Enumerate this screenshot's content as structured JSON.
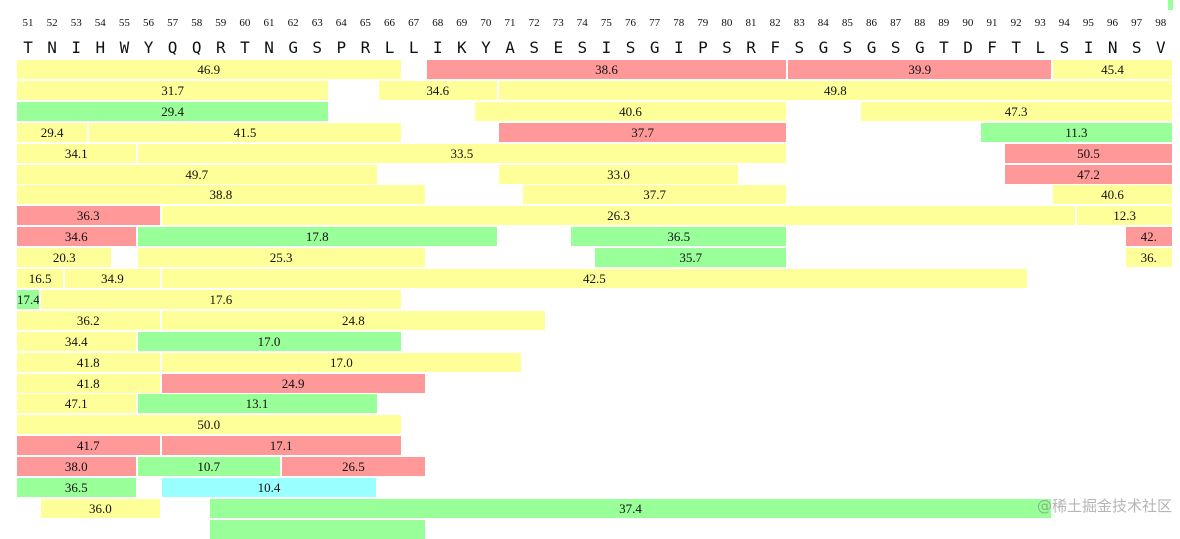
{
  "positions": {
    "start": 51,
    "end": 98
  },
  "sequence": "TNIHWYQQRTNGSPRLLIKYASESISGIPSRFSGSGSGTDFTLSINSV",
  "colors": {
    "yellow": "#ffff99",
    "red": "#ff9999",
    "green": "#99ff99",
    "cyan": "#99ffff"
  },
  "rows": [
    [
      {
        "start": 51,
        "end": 66,
        "value": "46.9",
        "color": "yellow"
      },
      {
        "start": 68,
        "end": 82,
        "value": "38.6",
        "color": "red"
      },
      {
        "start": 83,
        "end": 93,
        "value": "39.9",
        "color": "red"
      },
      {
        "start": 94,
        "end": 98,
        "value": "45.4",
        "color": "yellow"
      }
    ],
    [
      {
        "start": 51,
        "end": 63,
        "value": "31.7",
        "color": "yellow"
      },
      {
        "start": 66,
        "end": 70,
        "value": "34.6",
        "color": "yellow"
      },
      {
        "start": 71,
        "end": 98,
        "value": "49.8",
        "color": "yellow"
      }
    ],
    [
      {
        "start": 51,
        "end": 63,
        "value": "29.4",
        "color": "green"
      },
      {
        "start": 70,
        "end": 82,
        "value": "40.6",
        "color": "yellow"
      },
      {
        "start": 86,
        "end": 98,
        "value": "47.3",
        "color": "yellow"
      }
    ],
    [
      {
        "start": 51,
        "end": 53,
        "value": "29.4",
        "color": "yellow"
      },
      {
        "start": 54,
        "end": 66,
        "value": "41.5",
        "color": "yellow"
      },
      {
        "start": 71,
        "end": 82,
        "value": "37.7",
        "color": "red"
      },
      {
        "start": 91,
        "end": 98,
        "value": "11.3",
        "color": "green"
      }
    ],
    [
      {
        "start": 51,
        "end": 55,
        "value": "34.1",
        "color": "yellow"
      },
      {
        "start": 56,
        "end": 82,
        "value": "33.5",
        "color": "yellow"
      },
      {
        "start": 92,
        "end": 98,
        "value": "50.5",
        "color": "red"
      }
    ],
    [
      {
        "start": 51,
        "end": 65,
        "value": "49.7",
        "color": "yellow"
      },
      {
        "start": 71,
        "end": 80,
        "value": "33.0",
        "color": "yellow"
      },
      {
        "start": 92,
        "end": 98,
        "value": "47.2",
        "color": "red"
      }
    ],
    [
      {
        "start": 51,
        "end": 67,
        "value": "38.8",
        "color": "yellow"
      },
      {
        "start": 72,
        "end": 82,
        "value": "37.7",
        "color": "yellow"
      },
      {
        "start": 94,
        "end": 98,
        "value": "40.6",
        "color": "yellow"
      }
    ],
    [
      {
        "start": 51,
        "end": 56,
        "value": "36.3",
        "color": "red"
      },
      {
        "start": 57,
        "end": 94,
        "value": "26.3",
        "color": "yellow"
      },
      {
        "start": 95,
        "end": 98,
        "value": "12.3",
        "color": "yellow"
      }
    ],
    [
      {
        "start": 51,
        "end": 55,
        "value": "34.6",
        "color": "red"
      },
      {
        "start": 56,
        "end": 70,
        "value": "17.8",
        "color": "green"
      },
      {
        "start": 74,
        "end": 82,
        "value": "36.5",
        "color": "green"
      },
      {
        "start": 97,
        "end": 98,
        "value": "42.",
        "color": "red"
      }
    ],
    [
      {
        "start": 51,
        "end": 54,
        "value": "20.3",
        "color": "yellow"
      },
      {
        "start": 56,
        "end": 67,
        "value": "25.3",
        "color": "yellow"
      },
      {
        "start": 75,
        "end": 82,
        "value": "35.7",
        "color": "green"
      },
      {
        "start": 97,
        "end": 98,
        "value": "36.",
        "color": "yellow"
      }
    ],
    [
      {
        "start": 51,
        "end": 52,
        "value": "16.5",
        "color": "yellow"
      },
      {
        "start": 53,
        "end": 56,
        "value": "34.9",
        "color": "yellow"
      },
      {
        "start": 57,
        "end": 92,
        "value": "42.5",
        "color": "yellow"
      }
    ],
    [
      {
        "start": 51,
        "end": 51,
        "value": "17.4",
        "color": "green"
      },
      {
        "start": 52,
        "end": 66,
        "value": "17.6",
        "color": "yellow"
      }
    ],
    [
      {
        "start": 51,
        "end": 56,
        "value": "36.2",
        "color": "yellow"
      },
      {
        "start": 57,
        "end": 72,
        "value": "24.8",
        "color": "yellow"
      }
    ],
    [
      {
        "start": 51,
        "end": 55,
        "value": "34.4",
        "color": "yellow"
      },
      {
        "start": 56,
        "end": 66,
        "value": "17.0",
        "color": "green"
      }
    ],
    [
      {
        "start": 51,
        "end": 56,
        "value": "41.8",
        "color": "yellow"
      },
      {
        "start": 57,
        "end": 71,
        "value": "17.0",
        "color": "yellow"
      }
    ],
    [
      {
        "start": 51,
        "end": 56,
        "value": "41.8",
        "color": "yellow"
      },
      {
        "start": 57,
        "end": 67,
        "value": "24.9",
        "color": "red"
      }
    ],
    [
      {
        "start": 51,
        "end": 55,
        "value": "47.1",
        "color": "yellow"
      },
      {
        "start": 56,
        "end": 65,
        "value": "13.1",
        "color": "green"
      }
    ],
    [
      {
        "start": 51,
        "end": 66,
        "value": "50.0",
        "color": "yellow"
      }
    ],
    [
      {
        "start": 51,
        "end": 56,
        "value": "41.7",
        "color": "red"
      },
      {
        "start": 57,
        "end": 66,
        "value": "17.1",
        "color": "red"
      }
    ],
    [
      {
        "start": 51,
        "end": 55,
        "value": "38.0",
        "color": "red"
      },
      {
        "start": 56,
        "end": 61,
        "value": "10.7",
        "color": "green"
      },
      {
        "start": 62,
        "end": 67,
        "value": "26.5",
        "color": "red"
      }
    ],
    [
      {
        "start": 51,
        "end": 55,
        "value": "36.5",
        "color": "green"
      },
      {
        "start": 57,
        "end": 65,
        "value": "10.4",
        "color": "cyan"
      }
    ],
    [
      {
        "start": 52,
        "end": 56,
        "value": "36.0",
        "color": "yellow"
      },
      {
        "start": 59,
        "end": 93,
        "value": "37.4",
        "color": "green"
      }
    ],
    [
      {
        "start": 59,
        "end": 67,
        "value": "",
        "color": "green"
      }
    ]
  ],
  "watermark": "@稀土掘金技术社区"
}
